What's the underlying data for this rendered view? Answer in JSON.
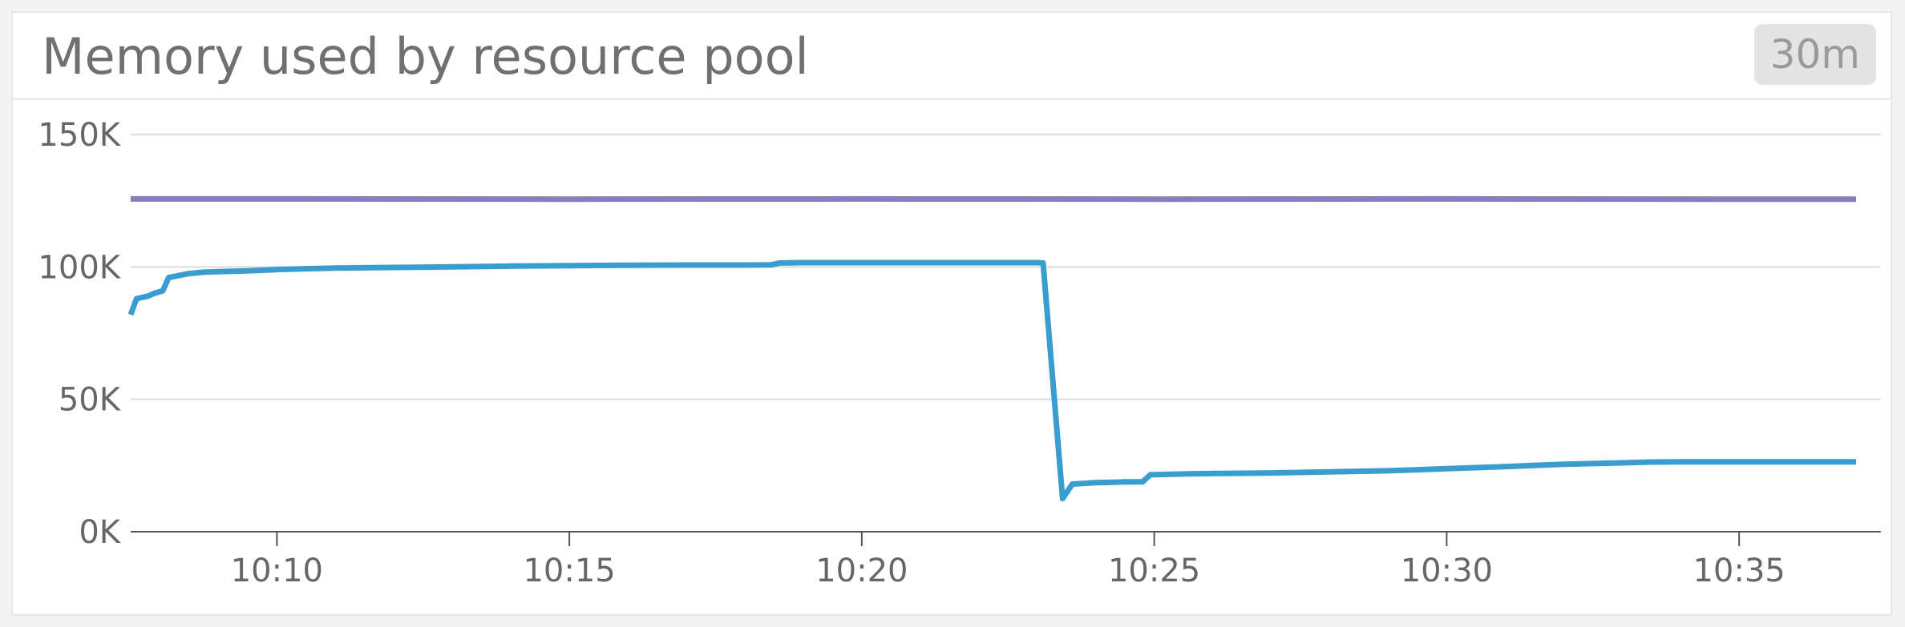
{
  "widget": {
    "title": "Memory used by resource pool",
    "time_range": "30m"
  },
  "chart_data": {
    "type": "line",
    "title": "Memory used by resource pool",
    "xlabel": "",
    "ylabel": "",
    "grid": true,
    "ylim": [
      0,
      150000
    ],
    "xlim": [
      "10:07:30",
      "10:37:00"
    ],
    "y_ticks": [
      {
        "value": 0,
        "label": "0K"
      },
      {
        "value": 50000,
        "label": "50K"
      },
      {
        "value": 100000,
        "label": "100K"
      },
      {
        "value": 150000,
        "label": "150K"
      }
    ],
    "x_ticks": [
      {
        "value": "10:10",
        "label": "10:10"
      },
      {
        "value": "10:15",
        "label": "10:15"
      },
      {
        "value": "10:20",
        "label": "10:20"
      },
      {
        "value": "10:25",
        "label": "10:25"
      },
      {
        "value": "10:30",
        "label": "10:30"
      },
      {
        "value": "10:35",
        "label": "10:35"
      }
    ],
    "series": [
      {
        "color": "#8b7bbf",
        "x": [
          "10:07:30",
          "10:10:00",
          "10:15:00",
          "10:20:00",
          "10:25:00",
          "10:30:00",
          "10:35:00",
          "10:37:00"
        ],
        "y": [
          125700,
          125700,
          125600,
          125700,
          125600,
          125700,
          125600,
          125600
        ]
      },
      {
        "color": "#3a9dd0",
        "x": [
          "10:07:30",
          "10:07:36",
          "10:07:48",
          "10:07:54",
          "10:08:03",
          "10:08:09",
          "10:08:30",
          "10:08:45",
          "10:09:00",
          "10:09:30",
          "10:10:00",
          "10:10:30",
          "10:11:00",
          "10:12:00",
          "10:13:00",
          "10:14:00",
          "10:15:00",
          "10:16:00",
          "10:17:00",
          "10:18:00",
          "10:18:27",
          "10:18:36",
          "10:19:00",
          "10:20:00",
          "10:21:00",
          "10:22:00",
          "10:23:00",
          "10:23:06",
          "10:23:26",
          "10:23:36",
          "10:24:00",
          "10:24:30",
          "10:24:48",
          "10:24:56",
          "10:25:30",
          "10:26:00",
          "10:27:00",
          "10:28:00",
          "10:29:00",
          "10:30:00",
          "10:31:00",
          "10:32:00",
          "10:33:00",
          "10:33:30",
          "10:34:00",
          "10:35:00",
          "10:36:00",
          "10:37:00"
        ],
        "y": [
          82000,
          88000,
          89000,
          90000,
          91000,
          96000,
          97500,
          98000,
          98200,
          98500,
          99000,
          99300,
          99600,
          99800,
          100000,
          100300,
          100500,
          100600,
          100700,
          100700,
          100800,
          101500,
          101600,
          101600,
          101600,
          101600,
          101600,
          101500,
          12500,
          18000,
          18500,
          18800,
          18800,
          21500,
          21800,
          22000,
          22200,
          22600,
          23000,
          23800,
          24600,
          25500,
          26000,
          26300,
          26400,
          26400,
          26400,
          26400
        ]
      }
    ]
  }
}
